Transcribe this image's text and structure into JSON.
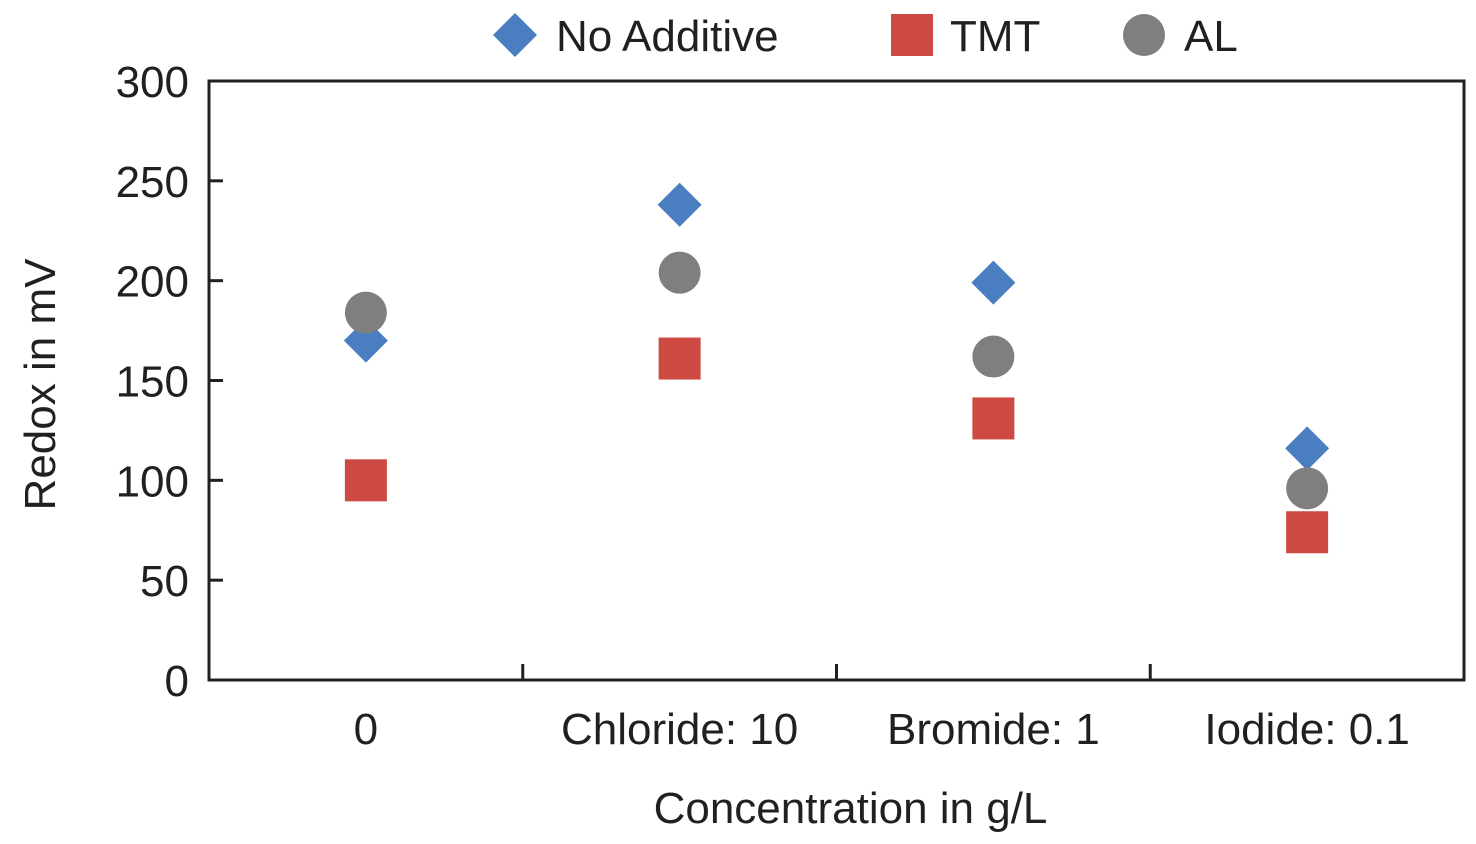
{
  "chart_data": {
    "type": "scatter",
    "title": "",
    "xlabel": "Concentration in g/L",
    "ylabel": "Redox in mV",
    "categories": [
      "0",
      "Chloride: 10",
      "Bromide: 1",
      "Iodide: 0.1"
    ],
    "ylim": [
      0,
      300
    ],
    "yticks": [
      "0",
      "50",
      "100",
      "150",
      "200",
      "250",
      "300"
    ],
    "grid": false,
    "legend_position": "top",
    "series": [
      {
        "name": "No Additive",
        "marker": "diamond",
        "color": "#4a7ec1",
        "values": [
          170,
          238,
          199,
          116
        ]
      },
      {
        "name": "TMT",
        "marker": "square",
        "color": "#cc4a42",
        "values": [
          100,
          161,
          131,
          74
        ]
      },
      {
        "name": "AL",
        "marker": "circle",
        "color": "#7f7f7f",
        "values": [
          184,
          204,
          162,
          96
        ]
      }
    ]
  }
}
